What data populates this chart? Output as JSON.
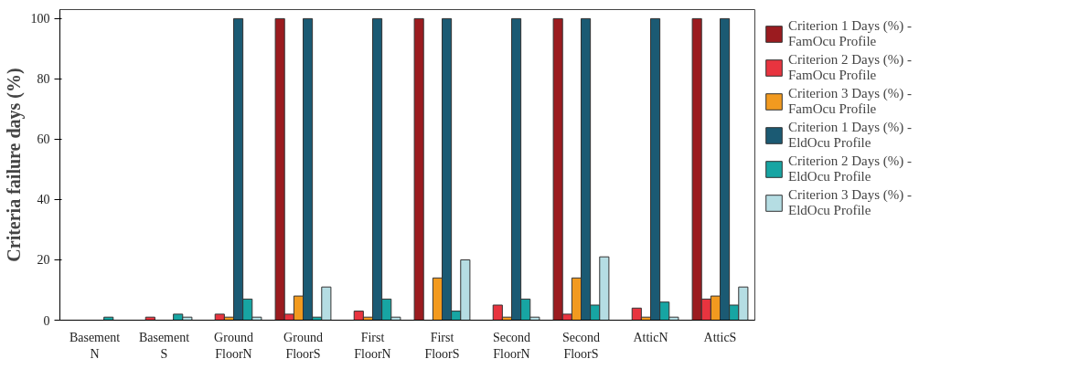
{
  "chart_data": {
    "type": "bar",
    "ylabel": "Criteria failure days (%)",
    "categories": [
      "Basement\nN",
      "Basement\nS",
      "Ground\nFloorN",
      "Ground\nFloorS",
      "First\nFloorN",
      "First\nFloorS",
      "Second\nFloorN",
      "Second\nFloorS",
      "AtticN",
      "AtticS"
    ],
    "series": [
      {
        "name": "Criterion 1 Days (%) -\nFamOcu Profile",
        "color": "#9b1b1f",
        "values": [
          null,
          null,
          null,
          100,
          null,
          100,
          null,
          100,
          null,
          100
        ]
      },
      {
        "name": "Criterion 2 Days (%) -\nFamOcu Profile",
        "color": "#e8343f",
        "values": [
          null,
          1,
          2,
          2,
          3,
          null,
          5,
          2,
          4,
          7
        ]
      },
      {
        "name": "Criterion 3 Days (%) -\nFamOcu Profile",
        "color": "#f29a1f",
        "values": [
          null,
          null,
          1,
          8,
          1,
          14,
          1,
          14,
          1,
          8
        ]
      },
      {
        "name": "Criterion 1 Days (%) -\nEldOcu Profile",
        "color": "#1b5a73",
        "values": [
          null,
          null,
          100,
          100,
          100,
          100,
          100,
          100,
          100,
          100
        ]
      },
      {
        "name": "Criterion 2 Days (%) -\nEldOcu Profile",
        "color": "#17a5a3",
        "values": [
          1,
          2,
          7,
          1,
          7,
          3,
          7,
          5,
          6,
          5
        ]
      },
      {
        "name": "Criterion 3 Days (%) -\nEldOcu Profile",
        "color": "#b5dde3",
        "values": [
          null,
          1,
          1,
          11,
          1,
          20,
          1,
          21,
          1,
          11
        ]
      }
    ],
    "ylim": [
      0,
      103
    ],
    "yticks": [
      0,
      20,
      40,
      60,
      80,
      100
    ],
    "grid": false,
    "legend": "right"
  }
}
